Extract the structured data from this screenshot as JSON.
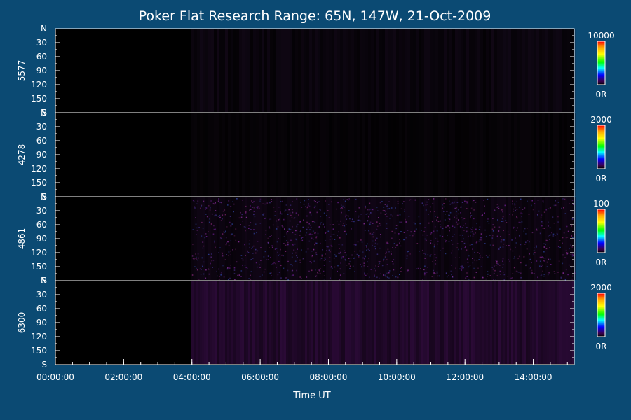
{
  "chart_data": {
    "type": "heatmap",
    "title": "Poker Flat Research Range: 65N, 147W, 21-Oct-2009",
    "xlabel": "Time UT",
    "x_range_hours": [
      0,
      15.2
    ],
    "x_ticks": [
      "00:00:00",
      "02:00:00",
      "04:00:00",
      "06:00:00",
      "08:00:00",
      "10:00:00",
      "12:00:00",
      "14:00:00"
    ],
    "data_start_hours": 4.0,
    "y_ticks": [
      "N",
      "30",
      "60",
      "90",
      "120",
      "150",
      "S"
    ],
    "y_range_deg": [
      0,
      180
    ],
    "panels": [
      {
        "ylabel": "5577",
        "colorbar_max": "10000",
        "colorbar_min": "0R",
        "texture": "faint",
        "tint": "#1a0c22"
      },
      {
        "ylabel": "4278",
        "colorbar_max": "2000",
        "colorbar_min": "0R",
        "texture": "faint",
        "tint": "#0e0710"
      },
      {
        "ylabel": "4861",
        "colorbar_max": "100",
        "colorbar_min": "0R",
        "texture": "speckle",
        "tint": "#4a1460"
      },
      {
        "ylabel": "6300",
        "colorbar_max": "2000",
        "colorbar_min": "0R",
        "texture": "purple",
        "tint": "#2a0a36"
      }
    ],
    "colors": {
      "background": "#0b4a73",
      "plot": "#000000",
      "axes": "#ffffff",
      "colormap": [
        "#ff0000",
        "#ffa500",
        "#ffff00",
        "#00ff00",
        "#00ffff",
        "#0000ff",
        "#3a0050",
        "#000000"
      ]
    }
  }
}
